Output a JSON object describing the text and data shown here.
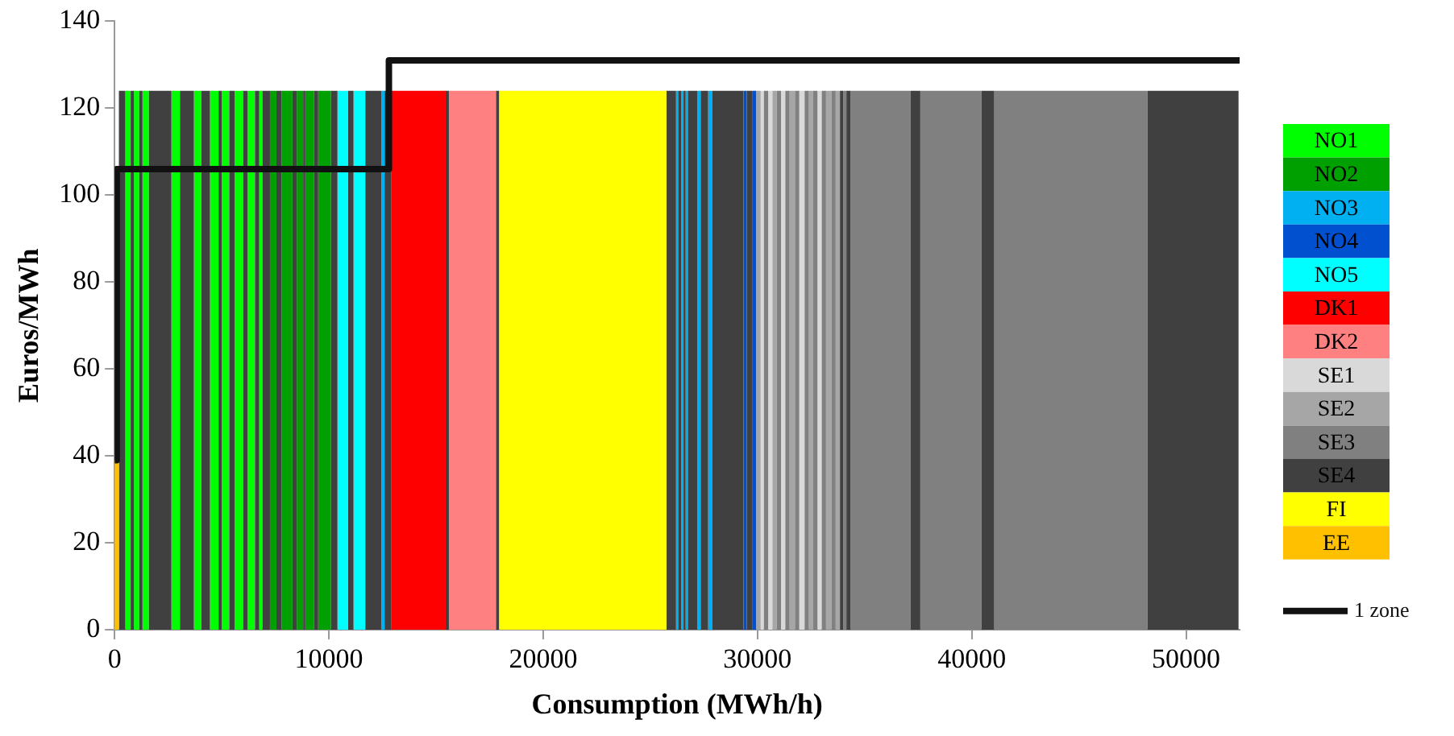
{
  "chart_data": {
    "type": "histogram",
    "xlabel": "Consumption (MWh/h)",
    "ylabel": "Euros/MWh",
    "xlim": [
      0,
      52500
    ],
    "xticks": [
      0,
      10000,
      20000,
      30000,
      40000,
      50000
    ],
    "ylim": [
      0,
      140
    ],
    "yticks": [
      0,
      20,
      40,
      60,
      80,
      100,
      120,
      140
    ],
    "grid": false,
    "legend": "right",
    "series": [
      {
        "name": "NO1",
        "color": "#00ff00",
        "bins": [
          500,
          750,
          900,
          1150,
          1300,
          1600,
          2650,
          3050,
          3700,
          4050,
          4450,
          4850,
          5000,
          5350,
          5600,
          6000,
          6200,
          6550,
          6750,
          6900
        ],
        "values": [
          124,
          null,
          124,
          null,
          124,
          null,
          124,
          null,
          124,
          null,
          124,
          null,
          124,
          null,
          124,
          null,
          124,
          null,
          124
        ]
      },
      {
        "name": "NO2",
        "color": "#00a000",
        "bins": [
          7250,
          7550,
          7800,
          8300,
          8500,
          8800,
          8900,
          9300,
          9500,
          10100
        ],
        "values": [
          124,
          null,
          124,
          null,
          124,
          null,
          124,
          null,
          124
        ]
      },
      {
        "name": "NO3",
        "color": "#00b0f0",
        "bins": [
          12450,
          12600,
          26200,
          26300,
          26450,
          26550,
          26650,
          26750,
          27200,
          27350,
          27700,
          27900
        ],
        "values": [
          124,
          null,
          124,
          null,
          124,
          null,
          124,
          null,
          124,
          null,
          124
        ]
      },
      {
        "name": "NO4",
        "color": "#0050d0",
        "bins": [
          29350,
          29500,
          29750,
          29950
        ],
        "values": [
          124,
          null,
          124
        ]
      },
      {
        "name": "NO5",
        "color": "#00ffff",
        "bins": [
          10400,
          10900,
          11150,
          11700
        ],
        "values": [
          124,
          null,
          124
        ]
      },
      {
        "name": "DK1",
        "color": "#ff0000",
        "bins": [
          12900,
          15450
        ],
        "values": [
          124
        ]
      },
      {
        "name": "DK2",
        "color": "#ff8080",
        "bins": [
          15600,
          17800
        ],
        "values": [
          124
        ]
      },
      {
        "name": "SE1",
        "color": "#d9d9d9",
        "bins": [
          30150,
          30300,
          30500,
          30700,
          31100,
          31300,
          31950,
          32200,
          32800,
          33000
        ],
        "values": [
          124,
          null,
          124,
          null,
          124,
          null,
          124,
          null,
          124
        ]
      },
      {
        "name": "SE2",
        "color": "#a6a6a6",
        "bins": [
          29950,
          30150,
          30700,
          30900,
          31500,
          31750,
          32400,
          32600,
          33200,
          33450,
          33650,
          33850
        ],
        "values": [
          124,
          null,
          124,
          null,
          124,
          null,
          124,
          null,
          124,
          null,
          124
        ]
      },
      {
        "name": "SE3",
        "color": "#808080",
        "bins": [
          30300,
          30500,
          30900,
          31100,
          31300,
          31500,
          31750,
          31950,
          32200,
          32400,
          32600,
          32800,
          33000,
          33200,
          33450,
          33650,
          34000,
          34150,
          34350,
          37150,
          37600,
          40450,
          41050,
          48200
        ],
        "values": [
          124,
          null,
          124,
          null,
          124,
          null,
          124,
          null,
          124,
          null,
          124,
          null,
          124,
          null,
          124,
          null,
          124,
          null,
          124,
          null,
          124,
          null,
          124
        ]
      },
      {
        "name": "SE4",
        "color": "#404040",
        "bins": [
          200,
          500,
          750,
          900,
          1150,
          1300,
          1600,
          2650,
          3050,
          3700,
          4050,
          4450,
          4850,
          5000,
          5350,
          5600,
          6000,
          6200,
          6550,
          6750,
          6900,
          7250,
          7550,
          7800,
          8300,
          8500,
          8800,
          8900,
          9300,
          9500,
          10100,
          10400,
          10900,
          11150,
          11700,
          12450,
          12600,
          12900,
          15450,
          15600,
          17800,
          17950,
          25750,
          26200,
          26300,
          26450,
          26550,
          26650,
          26750,
          27200,
          27350,
          27700,
          27900,
          29350,
          29500,
          29750,
          33850,
          34000,
          34150,
          34350,
          37150,
          37600,
          40450,
          41050,
          48200,
          52450
        ],
        "values": [
          124,
          null,
          124,
          null,
          124,
          null,
          124,
          null,
          124,
          null,
          124,
          null,
          124,
          null,
          124,
          null,
          124,
          null,
          124,
          null,
          124,
          null,
          124,
          null,
          124,
          null,
          124,
          null,
          124,
          null,
          124,
          null,
          124,
          null,
          124,
          null,
          124,
          null,
          124,
          null,
          124,
          null,
          124,
          null,
          124,
          null,
          124,
          null,
          124,
          null,
          124,
          null,
          124,
          null,
          124,
          null,
          124,
          null,
          124,
          null,
          124,
          null,
          124,
          null,
          124
        ]
      },
      {
        "name": "FI",
        "color": "#ffff00",
        "bins": [
          17950,
          25750
        ],
        "values": [
          124
        ]
      },
      {
        "name": "EE",
        "color": "#ffc000",
        "bins": [
          0,
          200
        ],
        "values": [
          39
        ]
      },
      {
        "name": "1 zone",
        "type": "step",
        "color": "#111111",
        "x": [
          0,
          100,
          12800,
          52500
        ],
        "values": [
          39,
          106,
          131,
          131
        ]
      }
    ]
  }
}
